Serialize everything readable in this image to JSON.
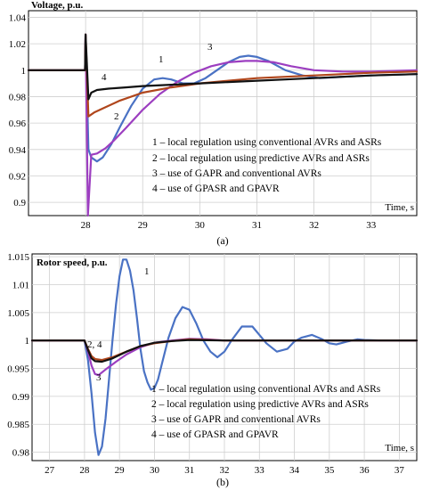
{
  "chart_data": [
    {
      "type": "line",
      "title": "",
      "ylabel": "Voltage, p.u.",
      "xlabel": "Time, s",
      "caption": "(a)",
      "xlim": [
        27.0,
        33.8
      ],
      "ylim": [
        0.89,
        1.045
      ],
      "xticks": [
        28,
        29,
        30,
        31,
        32,
        33
      ],
      "yticks": [
        0.9,
        0.92,
        0.94,
        0.96,
        0.98,
        1,
        1.02,
        1.04
      ],
      "ytick_labels": [
        "0.9",
        "0.92",
        "0.94",
        "0.96",
        "0.98",
        "1",
        "1.02",
        "1.04"
      ],
      "grid": true,
      "legend": [
        "1 – local regulation using conventional AVRs and ASRs",
        "2 – local regulation using predictive AVRs and ASRs",
        "3 – use of GAPR and conventional AVRs",
        "4 – use of GPASR and GPAVR"
      ],
      "legend_position": "bottom-right",
      "series": [
        {
          "color": "#4a72c4",
          "curve_label": "1",
          "x": [
            27.0,
            27.99,
            28.0,
            28.05,
            28.1,
            28.2,
            28.3,
            28.45,
            28.6,
            28.8,
            29.0,
            29.2,
            29.35,
            29.5,
            29.7,
            29.9,
            30.1,
            30.3,
            30.5,
            30.7,
            30.85,
            31.0,
            31.2,
            31.5,
            31.8,
            32.1,
            32.5,
            33.0,
            33.8
          ],
          "y": [
            1.0,
            1.0,
            1.027,
            0.94,
            0.934,
            0.931,
            0.934,
            0.944,
            0.957,
            0.973,
            0.986,
            0.993,
            0.994,
            0.993,
            0.99,
            0.99,
            0.994,
            1.0,
            1.006,
            1.01,
            1.011,
            1.01,
            1.007,
            1.0,
            0.996,
            0.994,
            0.995,
            0.996,
            0.997
          ]
        },
        {
          "color": "#b0461c",
          "curve_label": "2",
          "x": [
            27.0,
            27.99,
            28.0,
            28.05,
            28.15,
            28.3,
            28.6,
            29.0,
            29.5,
            30.0,
            30.5,
            31.0,
            31.5,
            32.0,
            32.5,
            33.0,
            33.8
          ],
          "y": [
            1.0,
            1.0,
            1.027,
            0.965,
            0.968,
            0.971,
            0.977,
            0.983,
            0.987,
            0.99,
            0.992,
            0.994,
            0.995,
            0.996,
            0.997,
            0.998,
            0.999
          ]
        },
        {
          "color": "#9c3ec0",
          "curve_label": "3",
          "x": [
            27.0,
            27.99,
            28.0,
            28.04,
            28.1,
            28.2,
            28.35,
            28.5,
            28.7,
            29.0,
            29.3,
            29.6,
            29.9,
            30.2,
            30.5,
            30.8,
            31.0,
            31.3,
            31.6,
            32.0,
            32.5,
            33.0,
            33.8
          ],
          "y": [
            1.0,
            1.0,
            1.027,
            0.89,
            0.936,
            0.937,
            0.941,
            0.947,
            0.956,
            0.97,
            0.982,
            0.991,
            0.998,
            1.003,
            1.006,
            1.007,
            1.007,
            1.006,
            1.003,
            1.0,
            0.999,
            0.999,
            1.0
          ]
        },
        {
          "color": "#111111",
          "curve_label": "4",
          "x": [
            27.0,
            27.99,
            28.0,
            28.05,
            28.1,
            28.2,
            28.4,
            28.7,
            29.0,
            29.5,
            30.0,
            30.5,
            31.0,
            31.5,
            32.0,
            32.5,
            33.0,
            33.8
          ],
          "y": [
            1.0,
            1.0,
            1.027,
            0.978,
            0.983,
            0.985,
            0.986,
            0.987,
            0.988,
            0.989,
            0.99,
            0.991,
            0.992,
            0.993,
            0.994,
            0.995,
            0.996,
            0.997
          ]
        }
      ],
      "curve_labels": [
        "1",
        "2",
        "3",
        "4"
      ]
    },
    {
      "type": "line",
      "title": "",
      "ylabel": "Rotor speed, p.u.",
      "xlabel": "Time, s",
      "caption": "(b)",
      "xlim": [
        26.5,
        37.5
      ],
      "ylim": [
        0.9785,
        1.0155
      ],
      "xticks": [
        27,
        28,
        29,
        30,
        31,
        32,
        33,
        34,
        35,
        36,
        37
      ],
      "yticks": [
        0.98,
        0.985,
        0.99,
        0.995,
        1,
        1.005,
        1.01,
        1.015
      ],
      "ytick_labels": [
        "0.98",
        "0.985",
        "0.99",
        "0.995",
        "1",
        "1.005",
        "1.01",
        "1.015"
      ],
      "grid": true,
      "legend": [
        "1 – local regulation using conventional AVRs and ASRs",
        "2 – local regulation using predictive AVRs and ASRs",
        "3 – use of GAPR and conventional AVRs",
        "4 – use of GPASR and GPAVR"
      ],
      "legend_position": "bottom-right",
      "series": [
        {
          "color": "#4a72c4",
          "curve_label": "1",
          "x": [
            26.5,
            28.0,
            28.1,
            28.2,
            28.3,
            28.4,
            28.5,
            28.6,
            28.7,
            28.8,
            28.9,
            29.0,
            29.1,
            29.2,
            29.3,
            29.4,
            29.5,
            29.6,
            29.7,
            29.8,
            29.9,
            30.0,
            30.1,
            30.2,
            30.4,
            30.6,
            30.8,
            31.0,
            31.2,
            31.4,
            31.6,
            31.8,
            32.0,
            32.2,
            32.5,
            32.8,
            33.0,
            33.2,
            33.5,
            33.8,
            34.0,
            34.2,
            34.5,
            34.8,
            35.0,
            35.2,
            35.5,
            35.8,
            36.0,
            36.5,
            37.0,
            37.5
          ],
          "y": [
            1.0,
            1.0,
            0.9965,
            0.9905,
            0.9835,
            0.9795,
            0.981,
            0.986,
            0.993,
            1.0,
            1.0065,
            1.0115,
            1.0145,
            1.0145,
            1.0125,
            1.009,
            1.004,
            0.9985,
            0.9945,
            0.9925,
            0.9912,
            0.9915,
            0.993,
            0.9955,
            1.0005,
            1.004,
            1.006,
            1.0055,
            1.003,
            1.0,
            0.998,
            0.997,
            0.998,
            1.0,
            1.0025,
            1.0025,
            1.001,
            0.9995,
            0.998,
            0.9985,
            0.9998,
            1.0005,
            1.001,
            1.0002,
            0.9995,
            0.9993,
            0.9998,
            1.0002,
            1.0001,
            1.0,
            1.0,
            1.0
          ]
        },
        {
          "color": "#b0461c",
          "curve_label": "2",
          "x": [
            26.5,
            28.0,
            28.1,
            28.2,
            28.3,
            28.5,
            28.8,
            29.2,
            29.6,
            30.0,
            30.5,
            31.0,
            32.0,
            33.0,
            37.5
          ],
          "y": [
            1.0,
            1.0,
            0.9985,
            0.9972,
            0.9967,
            0.9965,
            0.997,
            0.998,
            0.999,
            0.9995,
            0.9999,
            1.0002,
            1.0,
            1.0,
            1.0
          ]
        },
        {
          "color": "#9c3ec0",
          "curve_label": "3",
          "x": [
            26.5,
            28.0,
            28.1,
            28.2,
            28.3,
            28.4,
            28.6,
            28.9,
            29.2,
            29.6,
            30.0,
            30.5,
            31.0,
            31.5,
            32.0,
            33.0,
            37.5
          ],
          "y": [
            1.0,
            1.0,
            0.998,
            0.9955,
            0.994,
            0.9938,
            0.9948,
            0.9962,
            0.9975,
            0.9988,
            0.9996,
            1.0,
            1.0003,
            1.0002,
            1.0,
            1.0,
            1.0
          ]
        },
        {
          "color": "#111111",
          "curve_label": "4",
          "x": [
            26.5,
            28.0,
            28.1,
            28.2,
            28.3,
            28.5,
            28.8,
            29.2,
            29.6,
            30.0,
            30.5,
            31.0,
            32.0,
            37.5
          ],
          "y": [
            1.0,
            1.0,
            0.9983,
            0.9968,
            0.9963,
            0.9962,
            0.9968,
            0.998,
            0.999,
            0.9996,
            0.9999,
            1.0001,
            1.0,
            1.0
          ]
        }
      ],
      "curve_labels": [
        "1",
        "2, 4",
        "3"
      ]
    }
  ]
}
